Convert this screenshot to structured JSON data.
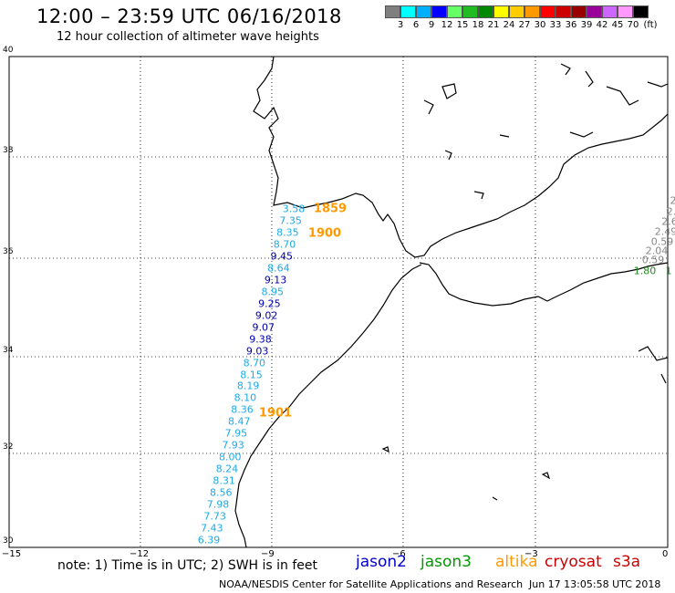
{
  "title": "12:00 – 23:59 UTC 06/16/2018",
  "subtitle": "12 hour collection of altimeter wave heights",
  "colorbar": {
    "labels": [
      "3",
      "6",
      "9",
      "12",
      "15",
      "18",
      "21",
      "24",
      "27",
      "30",
      "33",
      "36",
      "39",
      "42",
      "45",
      "70",
      "(ft)"
    ],
    "colors": [
      "#7f7f7f",
      "#00ffff",
      "#00b0ff",
      "#0000ff",
      "#66ff66",
      "#22bb22",
      "#008800",
      "#ffff00",
      "#ffcc00",
      "#ff9900",
      "#ff0000",
      "#cc0000",
      "#990000",
      "#990099",
      "#cc66ff",
      "#ff99ff",
      "#000000"
    ]
  },
  "axes": {
    "y_ticks": [
      "40",
      "38",
      "36",
      "34",
      "32",
      "30"
    ],
    "x_ticks": [
      "−15",
      "−12",
      "−9",
      "−6",
      "−3",
      "0"
    ]
  },
  "wave_colors": {
    "jason2_cyan": "#1eaae6",
    "jason2_blue": "#0000aa",
    "altika": "#ff9900",
    "jason3": "#228b22",
    "grey": "#888888"
  },
  "track_west": [
    {
      "v": "3.58",
      "c": "jason2_cyan"
    },
    {
      "v": "7.35",
      "c": "jason2_cyan"
    },
    {
      "v": "8.35",
      "c": "jason2_cyan"
    },
    {
      "v": "8.70",
      "c": "jason2_cyan"
    },
    {
      "v": "9.45",
      "c": "jason2_blue"
    },
    {
      "v": "8.64",
      "c": "jason2_cyan"
    },
    {
      "v": "9.13",
      "c": "jason2_blue"
    },
    {
      "v": "8.95",
      "c": "jason2_cyan"
    },
    {
      "v": "9.25",
      "c": "jason2_blue"
    },
    {
      "v": "9.02",
      "c": "jason2_blue"
    },
    {
      "v": "9.07",
      "c": "jason2_blue"
    },
    {
      "v": "9.38",
      "c": "jason2_blue"
    },
    {
      "v": "9.03",
      "c": "jason2_blue"
    },
    {
      "v": "8.70",
      "c": "jason2_cyan"
    },
    {
      "v": "8.15",
      "c": "jason2_cyan"
    },
    {
      "v": "8.19",
      "c": "jason2_cyan"
    },
    {
      "v": "8.10",
      "c": "jason2_cyan"
    },
    {
      "v": "8.36",
      "c": "jason2_cyan"
    },
    {
      "v": "8.47",
      "c": "jason2_cyan"
    },
    {
      "v": "7.95",
      "c": "jason2_cyan"
    },
    {
      "v": "7.93",
      "c": "jason2_cyan"
    },
    {
      "v": "8.00",
      "c": "jason2_cyan"
    },
    {
      "v": "8.24",
      "c": "jason2_cyan"
    },
    {
      "v": "8.31",
      "c": "jason2_cyan"
    },
    {
      "v": "8.56",
      "c": "jason2_cyan"
    },
    {
      "v": "7.98",
      "c": "jason2_cyan"
    },
    {
      "v": "7.73",
      "c": "jason2_cyan"
    },
    {
      "v": "7.43",
      "c": "jason2_cyan"
    },
    {
      "v": "6.39",
      "c": "jason2_cyan"
    }
  ],
  "time_labels": [
    "1859",
    "1900",
    "1901"
  ],
  "track_east": [
    "2",
    "2.",
    "2.6",
    "2.49",
    "0.59",
    "2.04",
    "0.59"
  ],
  "track_east_jason3": [
    "1.80",
    "1"
  ],
  "note": "note: 1) Time is in UTC; 2) SWH is in feet",
  "legend": [
    {
      "label": "jason2",
      "color": "#0000cc"
    },
    {
      "label": "jason3",
      "color": "#009900"
    },
    {
      "label": "altika",
      "color": "#ff9900"
    },
    {
      "label": "cryosat",
      "color": "#cc0000"
    },
    {
      "label": "s3a",
      "color": "#cc0000"
    }
  ],
  "credit": "NOAA/NESDIS Center for Satellite Applications and Research",
  "timestamp": "Jun 17 13:05:58 UTC 2018"
}
